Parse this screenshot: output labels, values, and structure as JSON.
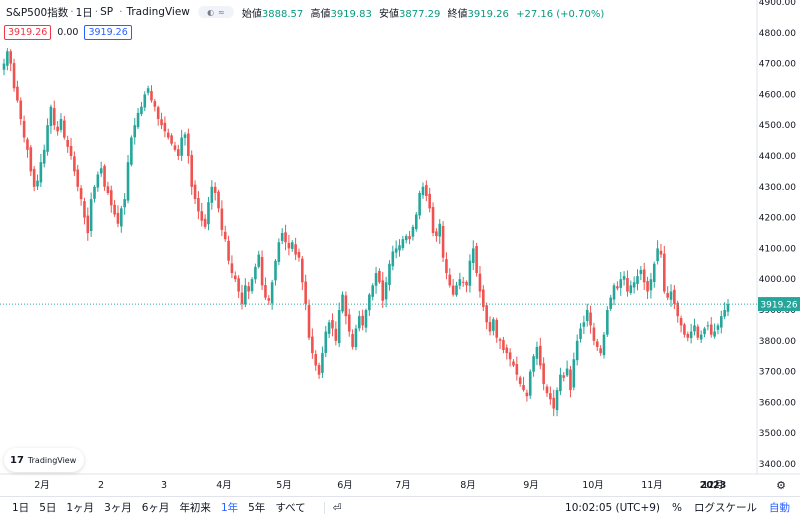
{
  "legend": {
    "symbol": "S&P500指数",
    "sep1": "·",
    "interval": "1日",
    "sep2": "·",
    "exchange": "SP",
    "sep3": "·",
    "source": "TradingView",
    "pill_eye": "◐",
    "pill_wave": "≈",
    "open_label": "始値",
    "open": "3888.57",
    "high_label": "高値",
    "high": "3919.83",
    "low_label": "安値",
    "low": "3877.29",
    "close_label": "終値",
    "close": "3919.26",
    "change": "+27.16 (+0.70%)"
  },
  "indicators": {
    "a": "3919.26",
    "b": "0.00",
    "c": "3919.26"
  },
  "price_axis": [
    "4900.00",
    "4800.00",
    "4700.00",
    "4600.00",
    "4500.00",
    "4400.00",
    "4300.00",
    "4200.00",
    "4100.00",
    "4000.00",
    "3900.00",
    "3800.00",
    "3700.00",
    "3600.00",
    "3500.00",
    "3400.00"
  ],
  "current_price_label": "3919.26",
  "time_axis": [
    "2月",
    "2",
    "3",
    "4月",
    "5月",
    "6月",
    "7月",
    "8月",
    "9月",
    "10月",
    "11月",
    "12月",
    "2023"
  ],
  "logo_text": "TradingView",
  "logo_mark": "17",
  "ranges": [
    "1日",
    "5日",
    "1ヶ月",
    "3ヶ月",
    "6ヶ月",
    "年初来",
    "1年",
    "5年",
    "すべて"
  ],
  "active_range": "1年",
  "calendar_icon": "⏎",
  "time": "10:02:05 (UTC+9)",
  "percent": "%",
  "log_scale": "ログスケール",
  "auto": "自動",
  "colors": {
    "up": "#26a69a",
    "down": "#ef5350",
    "accent": "#2962ff"
  },
  "chart_data": {
    "type": "candlestick",
    "ylim": [
      3380,
      4920
    ],
    "current": 3919.26,
    "closes": [
      4700,
      4740,
      4700,
      4620,
      4580,
      4520,
      4460,
      4420,
      4350,
      4300,
      4320,
      4380,
      4420,
      4500,
      4560,
      4500,
      4480,
      4520,
      4460,
      4430,
      4400,
      4350,
      4300,
      4260,
      4200,
      4150,
      4260,
      4300,
      4340,
      4360,
      4300,
      4280,
      4240,
      4210,
      4180,
      4230,
      4260,
      4380,
      4460,
      4500,
      4540,
      4560,
      4600,
      4620,
      4580,
      4560,
      4520,
      4500,
      4480,
      4460,
      4440,
      4420,
      4400,
      4460,
      4470,
      4400,
      4300,
      4260,
      4220,
      4190,
      4170,
      4250,
      4300,
      4280,
      4230,
      4160,
      4130,
      4060,
      4020,
      4000,
      3960,
      3920,
      3980,
      3960,
      4000,
      4040,
      4080,
      3980,
      3940,
      3930,
      3990,
      4060,
      4120,
      4150,
      4120,
      4100,
      4120,
      4080,
      4070,
      3990,
      3920,
      3810,
      3760,
      3720,
      3690,
      3760,
      3830,
      3860,
      3840,
      3800,
      3900,
      3950,
      3880,
      3830,
      3780,
      3840,
      3880,
      3850,
      3900,
      3950,
      3980,
      4020,
      3990,
      3930,
      3990,
      4050,
      4090,
      4100,
      4110,
      4130,
      4140,
      4130,
      4170,
      4210,
      4280,
      4300,
      4270,
      4230,
      4150,
      4140,
      4180,
      4070,
      4020,
      3980,
      3950,
      3980,
      4000,
      3990,
      3980,
      4060,
      4100,
      4020,
      3960,
      3910,
      3860,
      3830,
      3870,
      3810,
      3800,
      3770,
      3760,
      3740,
      3720,
      3690,
      3660,
      3640,
      3620,
      3700,
      3750,
      3780,
      3720,
      3660,
      3630,
      3610,
      3580,
      3640,
      3690,
      3680,
      3710,
      3640,
      3740,
      3800,
      3840,
      3860,
      3900,
      3850,
      3800,
      3780,
      3760,
      3820,
      3900,
      3940,
      3980,
      3970,
      4000,
      4010,
      3960,
      3980,
      3990,
      4010,
      4030,
      3990,
      3960,
      4000,
      4050,
      4100,
      4080,
      3960,
      3940,
      3960,
      3920,
      3880,
      3850,
      3820,
      3810,
      3830,
      3850,
      3810,
      3820,
      3840,
      3850,
      3820,
      3830,
      3850,
      3880,
      3900,
      3919
    ]
  }
}
